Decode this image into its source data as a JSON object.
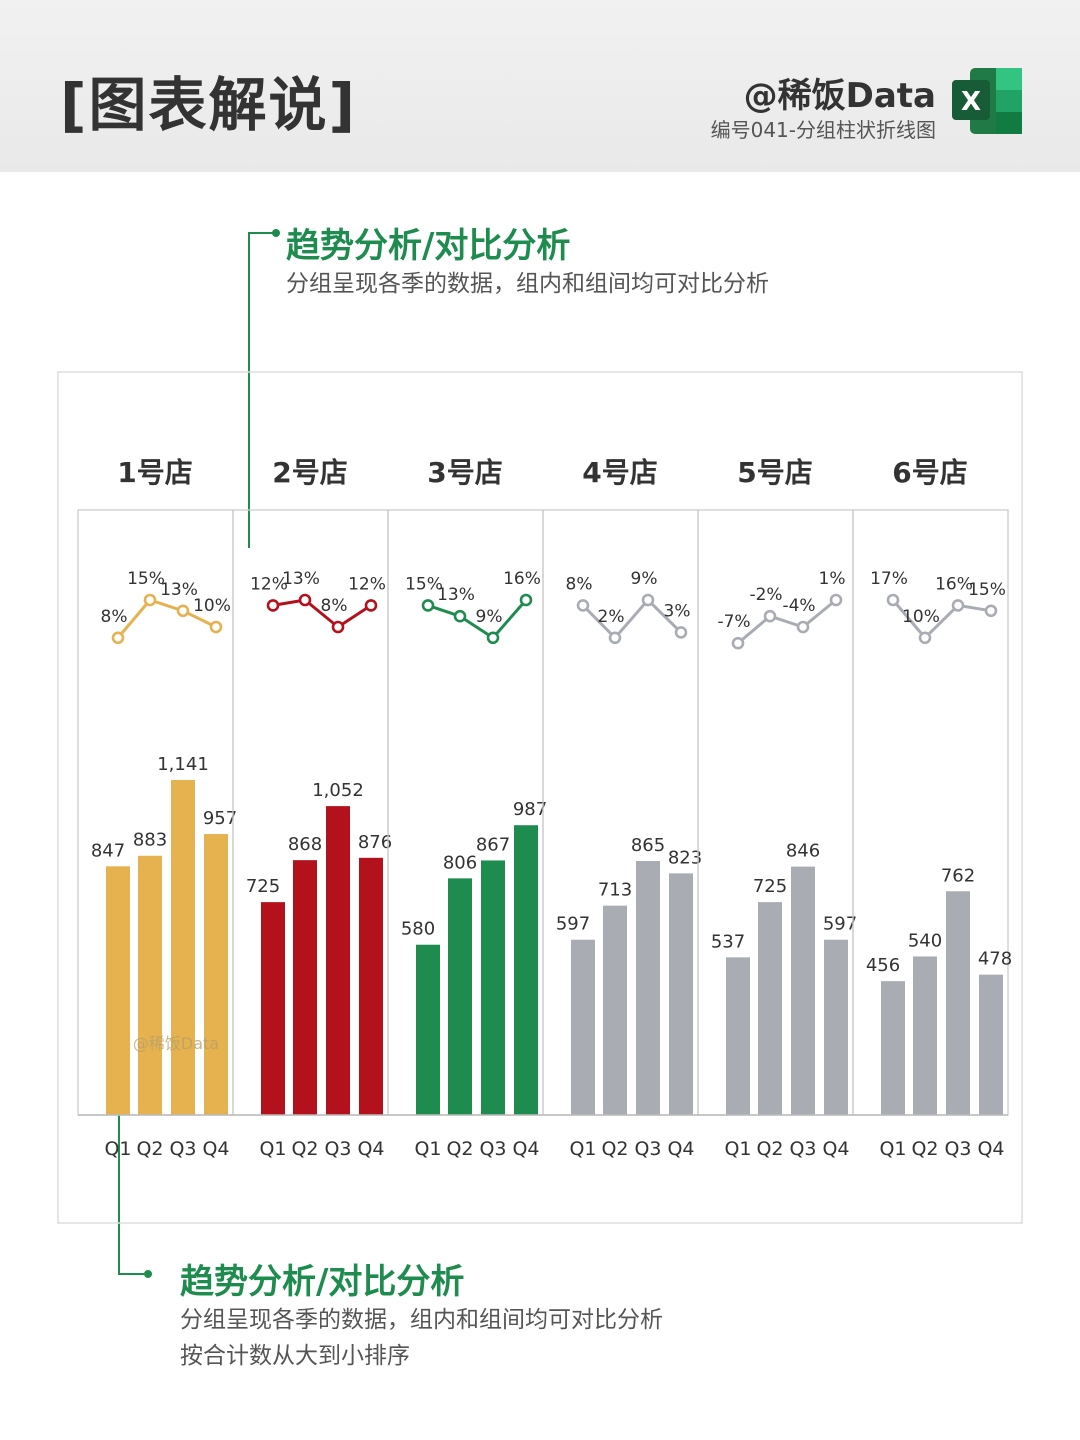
{
  "header": {
    "title": "[图表解说]",
    "brand": "@稀饭Data",
    "subtitle": "编号041-分组柱状折线图",
    "icon": "excel-icon",
    "excel_letter": "X"
  },
  "top_note": {
    "title": "趋势分析/对比分析",
    "text": "分组呈现各季的数据，组内和组间均可对比分析"
  },
  "bottom_note": {
    "title": "趋势分析/对比分析",
    "lines": [
      "分组呈现各季的数据，组内和组间均可对比分析",
      "按合计数从大到小排序"
    ]
  },
  "colors": {
    "accent": "#1e8c4e",
    "store1": "#e6b14f",
    "store2": "#b3121d",
    "store3": "#1e8c4e",
    "gray": "#a9acb2",
    "line_gray": "#a9acb2"
  },
  "chart_data": {
    "type": "bar",
    "categories": [
      "Q1",
      "Q2",
      "Q3",
      "Q4"
    ],
    "watermark": "@稀饭Data",
    "groups": [
      {
        "name": "1号店",
        "values": [
          847,
          883,
          1141,
          957
        ],
        "labels": [
          "847",
          "883",
          "1,141",
          "957"
        ],
        "growth": [
          8,
          15,
          13,
          10
        ],
        "color": "#e6b14f",
        "line_color": "#e6b14f"
      },
      {
        "name": "2号店",
        "values": [
          725,
          868,
          1052,
          876
        ],
        "labels": [
          "725",
          "868",
          "1,052",
          "876"
        ],
        "growth": [
          12,
          13,
          8,
          12
        ],
        "color": "#b3121d",
        "line_color": "#b3121d"
      },
      {
        "name": "3号店",
        "values": [
          580,
          806,
          867,
          987
        ],
        "labels": [
          "580",
          "806",
          "867",
          "987"
        ],
        "growth": [
          15,
          13,
          9,
          16
        ],
        "color": "#1e8c4e",
        "line_color": "#1e8c4e"
      },
      {
        "name": "4号店",
        "values": [
          597,
          713,
          865,
          823
        ],
        "labels": [
          "597",
          "713",
          "865",
          "823"
        ],
        "growth": [
          8,
          2,
          9,
          3
        ],
        "color": "#a9acb2",
        "line_color": "#a9acb2"
      },
      {
        "name": "5号店",
        "values": [
          537,
          725,
          846,
          597
        ],
        "labels": [
          "537",
          "725",
          "846",
          "597"
        ],
        "growth": [
          -7,
          -2,
          -4,
          1
        ],
        "color": "#a9acb2",
        "line_color": "#a9acb2"
      },
      {
        "name": "6号店",
        "values": [
          456,
          540,
          762,
          478
        ],
        "labels": [
          "456",
          "540",
          "762",
          "478"
        ],
        "growth": [
          17,
          10,
          16,
          15
        ],
        "color": "#a9acb2",
        "line_color": "#a9acb2"
      }
    ]
  }
}
